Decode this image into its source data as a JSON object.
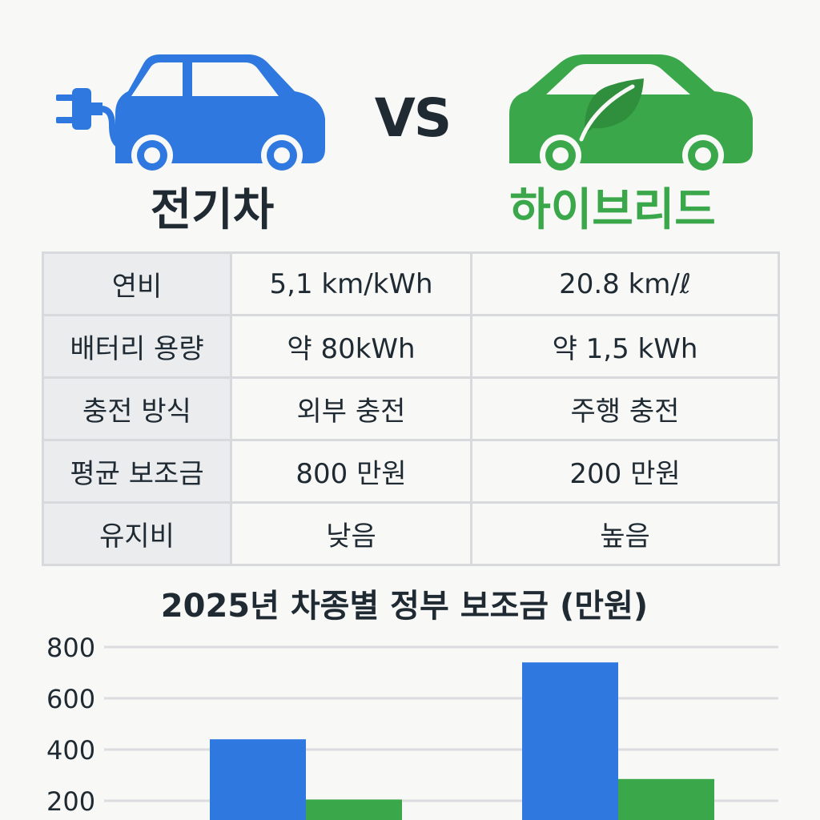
{
  "header": {
    "ev_title": "전기차",
    "vs_label": "VS",
    "hybrid_title": "하이브리드",
    "ev_icon": "ev-car-plug-icon",
    "hybrid_icon": "hybrid-car-leaf-icon",
    "ev_color": "#2f78df",
    "hybrid_color": "#3aa84a"
  },
  "table": {
    "rows": [
      {
        "label": "연비",
        "ev": "5,1 km/kWh",
        "hybrid": "20.8 km/ℓ"
      },
      {
        "label": "배터리 용량",
        "ev": "약 80kWh",
        "hybrid": "약 1,5 kWh"
      },
      {
        "label": "충전 방식",
        "ev": "외부 충전",
        "hybrid": "주행 충전"
      },
      {
        "label": "평균 보조금",
        "ev": "800 만원",
        "hybrid": "200 만원"
      },
      {
        "label": "유지비",
        "ev": "낮음",
        "hybrid": "높음"
      }
    ]
  },
  "chart_data": {
    "type": "bar",
    "title": "2025년 차종별 정부 보조금 (만원)",
    "y_ticks": [
      "800",
      "600",
      "400",
      "200"
    ],
    "ylim": [
      0,
      800
    ],
    "groups": 2,
    "series": [
      {
        "color": "#2f78df",
        "values": [
          440,
          740
        ]
      },
      {
        "color": "#3aa84a",
        "values": [
          205,
          285
        ]
      }
    ],
    "grid": true
  }
}
